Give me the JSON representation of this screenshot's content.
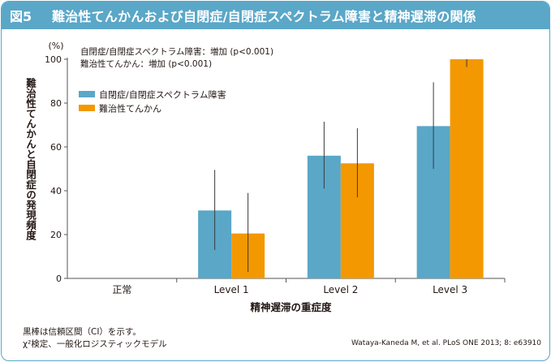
{
  "figure": {
    "label": "図5",
    "title": "難治性てんかんおよび自閉症/自閉症スペクトラム障害と精神遅滞の関係"
  },
  "chart_data": {
    "type": "bar",
    "categories": [
      "正常",
      "Level 1",
      "Level 2",
      "Level 3"
    ],
    "series": [
      {
        "name": "自閉症/自閉症スペクトラム障害",
        "color": "#5aa7c8",
        "values": [
          0,
          31,
          56,
          69.5
        ],
        "ci_low": [
          null,
          13,
          41,
          50
        ],
        "ci_high": [
          null,
          49.5,
          71.5,
          89.5
        ]
      },
      {
        "name": "難治性てんかん",
        "color": "#f39800",
        "values": [
          0,
          20.5,
          52.5,
          100
        ],
        "ci_low": [
          null,
          3,
          37,
          96.5
        ],
        "ci_high": [
          null,
          39,
          68.5,
          100
        ]
      }
    ],
    "ylim": [
      0,
      100
    ],
    "yticks": [
      0,
      20,
      40,
      60,
      80,
      100
    ],
    "yunit": "(%)",
    "ylabel": "難治性てんかんと自閉症の発現頻度",
    "xlabel": "精神遅滞の重症度",
    "annotations": [
      "自閉症/自閉症スペクトラム障害：増加 (p<0.001)",
      "難治性てんかん：増加 (p<0.001)"
    ],
    "legend_position": "top-left"
  },
  "notes": {
    "line1": "黒棒は信頼区間（CI）を示す。",
    "line2": "χ²検定、一般化ロジスティックモデル"
  },
  "source": "Wataya-Kaneda M, et al. PLoS ONE 2013; 8: e63910"
}
